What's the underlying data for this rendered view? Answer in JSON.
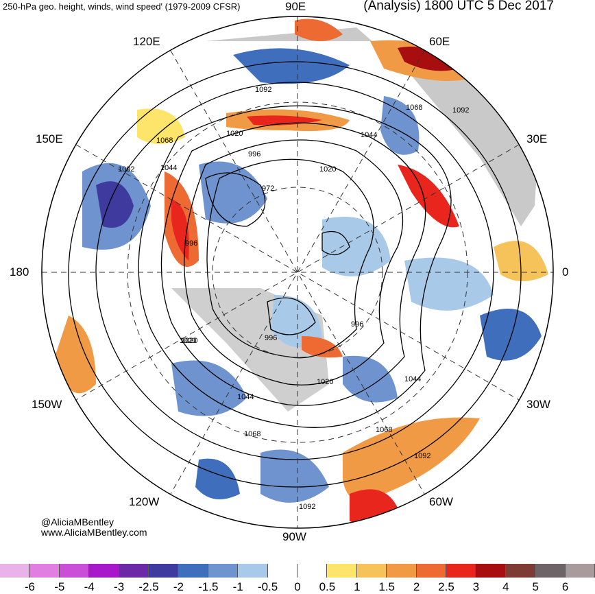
{
  "title": {
    "left": "250-hPa geo. height, winds, wind speed' (1979-2009 CFSR)",
    "right": "(Analysis) 1800 UTC 5 Dec 2017"
  },
  "credit": {
    "handle": "@AliciaMBentley",
    "website": "www.AliciaMBentley.com"
  },
  "longitude_labels": [
    {
      "name": "lon-90e",
      "text": "90E"
    },
    {
      "name": "lon-60e",
      "text": "60E"
    },
    {
      "name": "lon-30e",
      "text": "30E"
    },
    {
      "name": "lon-0",
      "text": "0"
    },
    {
      "name": "lon-30w",
      "text": "30W"
    },
    {
      "name": "lon-60w",
      "text": "60W"
    },
    {
      "name": "lon-90w",
      "text": "90W"
    },
    {
      "name": "lon-120w",
      "text": "120W"
    },
    {
      "name": "lon-150w",
      "text": "150W"
    },
    {
      "name": "lon-180",
      "text": "180"
    },
    {
      "name": "lon-150e",
      "text": "150E"
    },
    {
      "name": "lon-120e",
      "text": "120E"
    }
  ],
  "height_labels": [
    "1092",
    "1068",
    "1092",
    "1068",
    "1044",
    "1020",
    "996",
    "972",
    "1020",
    "1020",
    "996",
    "1044",
    "1092",
    "1020",
    "996",
    "996",
    "1044",
    "1068",
    "1020",
    "1044",
    "1068",
    "1092",
    "1092"
  ],
  "colorbar": {
    "ticks": [
      "-6",
      "-5",
      "-4",
      "-3",
      "-2.5",
      "-2",
      "-1.5",
      "-1",
      "-0.5",
      "0",
      "0.5",
      "1",
      "1.5",
      "2",
      "2.5",
      "3",
      "4",
      "5",
      "6"
    ],
    "colors": [
      "#e9b3e9",
      "#e07fe0",
      "#c84fd6",
      "#a918c8",
      "#6a2aa8",
      "#3f3a9e",
      "#3f6ebd",
      "#6f93cf",
      "#a9c9e8",
      "#ffffff",
      "#ffffff",
      "#fde46a",
      "#f6c35a",
      "#f19a45",
      "#ee6a33",
      "#e8261e",
      "#a80d0f",
      "#7d3b34",
      "#6e6366",
      "#a99a9c"
    ]
  }
}
